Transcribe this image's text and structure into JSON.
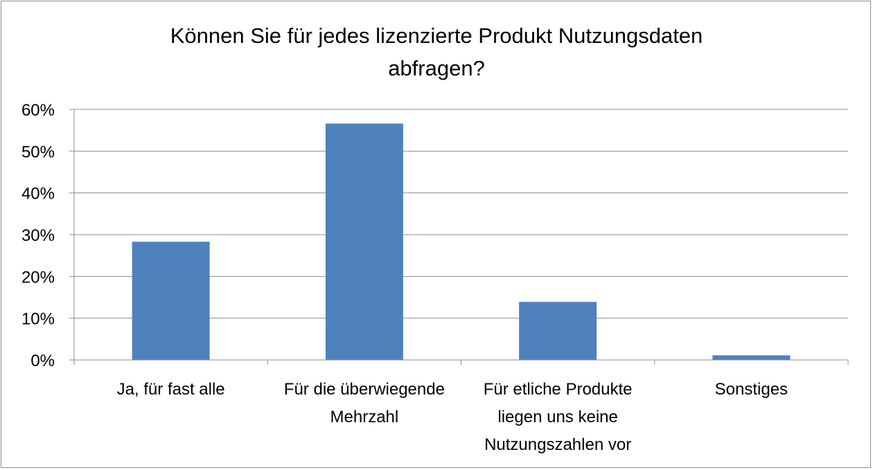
{
  "chart_data": {
    "type": "bar",
    "title_lines": [
      "Können Sie für jedes lizenzierte Produkt Nutzungsdaten",
      "abfragen?"
    ],
    "categories": [
      [
        "Ja, für fast alle"
      ],
      [
        "Für die überwiegende",
        "Mehrzahl"
      ],
      [
        "Für etliche Produkte",
        "liegen uns keine",
        "Nutzungszahlen vor"
      ],
      [
        "Sonstiges"
      ]
    ],
    "values": [
      28.3,
      56.6,
      13.9,
      1.1
    ],
    "y_ticks": [
      "0%",
      "10%",
      "20%",
      "30%",
      "40%",
      "50%",
      "60%"
    ],
    "ylim": [
      0,
      60
    ],
    "grid": true,
    "bar_color": "#4f81bd",
    "grid_color": "#8c8c8c"
  }
}
